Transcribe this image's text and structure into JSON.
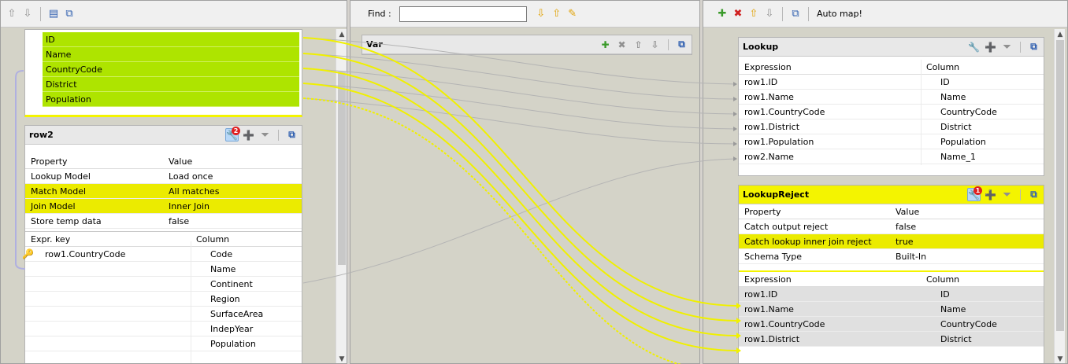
{
  "left_area": {
    "input_columns": [
      "ID",
      "Name",
      "CountryCode",
      "District",
      "Population"
    ],
    "row2": {
      "title": "row2",
      "badge": "2",
      "props_header": [
        "Property",
        "Value"
      ],
      "props": [
        {
          "property": "Lookup Model",
          "value": "Load once",
          "highlight": false
        },
        {
          "property": "Match Model",
          "value": "All matches",
          "highlight": true
        },
        {
          "property": "Join Model",
          "value": "Inner Join",
          "highlight": true
        },
        {
          "property": "Store temp data",
          "value": "false",
          "highlight": false
        }
      ],
      "keys_header": [
        "Expr. key",
        "Column"
      ],
      "key_expr": "row1.CountryCode",
      "columns": [
        "Code",
        "Name",
        "Continent",
        "Region",
        "SurfaceArea",
        "IndepYear",
        "Population"
      ]
    }
  },
  "middle_area": {
    "find_label": "Find :",
    "find_value": "",
    "var": {
      "title": "Var"
    }
  },
  "right_area": {
    "automap_label": "Auto map!",
    "lookup": {
      "title": "Lookup",
      "header": [
        "Expression",
        "Column"
      ],
      "rows": [
        {
          "expression": "row1.ID",
          "column": "ID"
        },
        {
          "expression": "row1.Name",
          "column": "Name"
        },
        {
          "expression": "row1.CountryCode",
          "column": "CountryCode"
        },
        {
          "expression": "row1.District",
          "column": "District"
        },
        {
          "expression": "row1.Population",
          "column": "Population"
        },
        {
          "expression": "row2.Name",
          "column": "Name_1"
        }
      ]
    },
    "reject": {
      "title": "LookupReject",
      "badge": "1",
      "props_header": [
        "Property",
        "Value"
      ],
      "props": [
        {
          "property": "Catch output reject",
          "value": "false",
          "highlight": false
        },
        {
          "property": "Catch lookup inner join reject",
          "value": "true",
          "highlight": true
        },
        {
          "property": "Schema Type",
          "value": "Built-In",
          "highlight": false
        }
      ],
      "header": [
        "Expression",
        "Column"
      ],
      "rows": [
        {
          "expression": "row1.ID",
          "column": "ID"
        },
        {
          "expression": "row1.Name",
          "column": "Name"
        },
        {
          "expression": "row1.CountryCode",
          "column": "CountryCode"
        },
        {
          "expression": "row1.District",
          "column": "District"
        }
      ]
    }
  }
}
